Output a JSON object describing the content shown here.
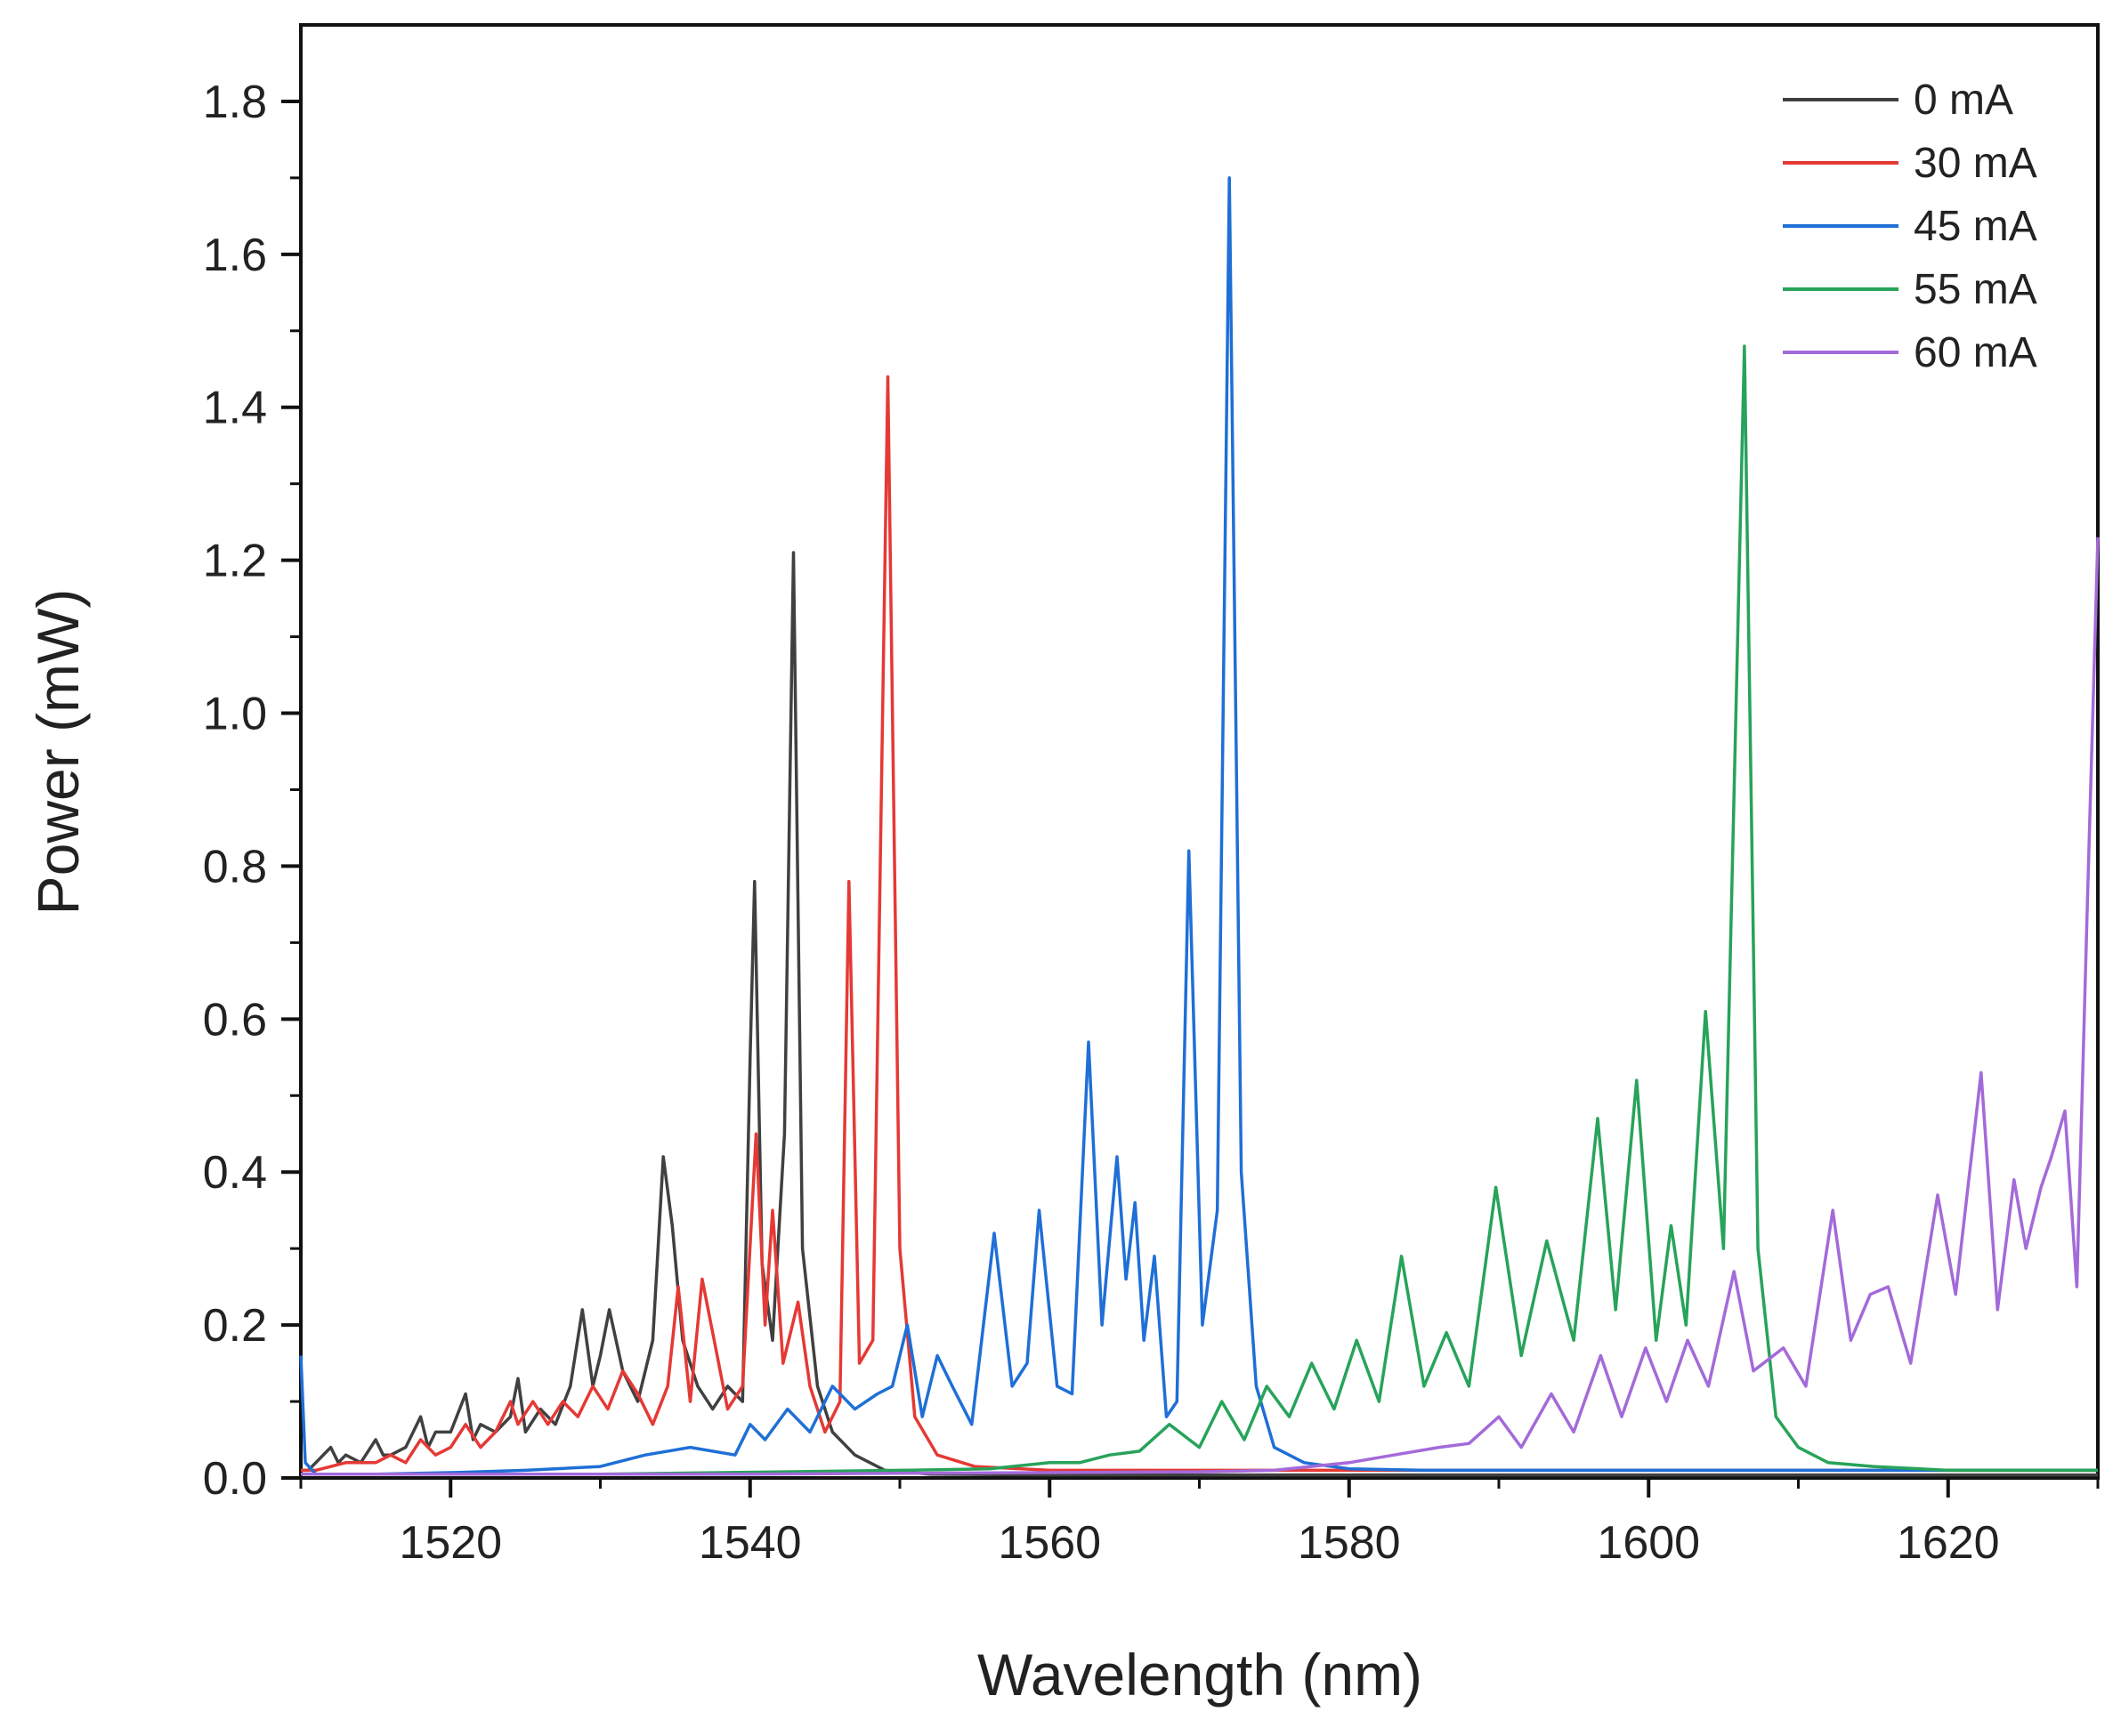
{
  "chart_data": {
    "type": "line",
    "title": "",
    "xlabel": "Wavelength (nm)",
    "ylabel": "Power (mW)",
    "xlim": [
      1510,
      1630
    ],
    "ylim": [
      0,
      1.9
    ],
    "xticks": [
      1520,
      1540,
      1560,
      1580,
      1600,
      1620
    ],
    "yticks": [
      0.0,
      0.2,
      0.4,
      0.6,
      0.8,
      1.0,
      1.2,
      1.4,
      1.6,
      1.8
    ],
    "ytick_labels": [
      "0.0",
      "0.2",
      "0.4",
      "0.6",
      "0.8",
      "1.0",
      "1.2",
      "1.4",
      "1.6",
      "1.8"
    ],
    "grid": false,
    "legend_position": "top-right",
    "series": [
      {
        "name": "0 mA",
        "color": "#404040",
        "x": [
          1510,
          1510.5,
          1511,
          1512,
          1512.5,
          1513,
          1514,
          1515,
          1515.5,
          1516,
          1517,
          1518,
          1518.5,
          1519,
          1520,
          1521,
          1521.5,
          1522,
          1523,
          1524,
          1524.5,
          1525,
          1526,
          1527,
          1528,
          1528.8,
          1529.5,
          1530,
          1530.6,
          1531.5,
          1532.5,
          1533.5,
          1534.2,
          1534.8,
          1535.5,
          1536.5,
          1537.5,
          1538.5,
          1539.5,
          1540,
          1540.3,
          1540.8,
          1541.5,
          1542.3,
          1542.9,
          1543.5,
          1544.5,
          1545.5,
          1547,
          1549,
          1552,
          1560,
          1570,
          1580,
          1590,
          1600,
          1610,
          1620,
          1630
        ],
        "y": [
          0.01,
          0.01,
          0.02,
          0.04,
          0.02,
          0.03,
          0.02,
          0.05,
          0.03,
          0.03,
          0.04,
          0.08,
          0.04,
          0.06,
          0.06,
          0.11,
          0.05,
          0.07,
          0.06,
          0.08,
          0.13,
          0.06,
          0.09,
          0.07,
          0.12,
          0.22,
          0.12,
          0.16,
          0.22,
          0.14,
          0.1,
          0.18,
          0.42,
          0.33,
          0.18,
          0.12,
          0.09,
          0.12,
          0.1,
          0.55,
          0.78,
          0.28,
          0.18,
          0.45,
          1.21,
          0.3,
          0.12,
          0.06,
          0.03,
          0.01,
          0.005,
          0.004,
          0.004,
          0.004,
          0.004,
          0.004,
          0.004,
          0.004,
          0.004
        ]
      },
      {
        "name": "30 mA",
        "color": "#e53935",
        "x": [
          1510,
          1511,
          1513,
          1515,
          1516,
          1517,
          1518,
          1519,
          1520,
          1521,
          1522,
          1523,
          1524,
          1524.5,
          1525.5,
          1526.5,
          1527.5,
          1528.5,
          1529.5,
          1530.5,
          1531.5,
          1532.5,
          1533.5,
          1534.5,
          1535.2,
          1536,
          1536.8,
          1537.6,
          1538.5,
          1539.5,
          1540.4,
          1541,
          1541.5,
          1542.2,
          1543.2,
          1544,
          1545,
          1546,
          1546.6,
          1547.3,
          1548.2,
          1549.2,
          1550,
          1551,
          1552.5,
          1555,
          1560,
          1570,
          1580,
          1590,
          1600,
          1610,
          1620,
          1630
        ],
        "y": [
          0.01,
          0.01,
          0.02,
          0.02,
          0.03,
          0.02,
          0.05,
          0.03,
          0.04,
          0.07,
          0.04,
          0.06,
          0.1,
          0.07,
          0.1,
          0.07,
          0.1,
          0.08,
          0.12,
          0.09,
          0.14,
          0.11,
          0.07,
          0.12,
          0.25,
          0.1,
          0.26,
          0.18,
          0.09,
          0.12,
          0.45,
          0.2,
          0.35,
          0.15,
          0.23,
          0.12,
          0.06,
          0.1,
          0.78,
          0.15,
          0.18,
          1.44,
          0.3,
          0.08,
          0.03,
          0.015,
          0.01,
          0.01,
          0.01,
          0.01,
          0.01,
          0.01,
          0.01,
          0.01
        ]
      },
      {
        "name": "45 mA",
        "color": "#1f6fd6",
        "x": [
          1510,
          1510.3,
          1511,
          1515,
          1520,
          1525,
          1530,
          1533,
          1536,
          1539,
          1540,
          1541,
          1542.5,
          1544,
          1545.5,
          1547,
          1548.5,
          1549.5,
          1550.5,
          1551.5,
          1552.5,
          1553.5,
          1554.8,
          1556.3,
          1557.5,
          1558.5,
          1559.3,
          1560.5,
          1561.5,
          1562.6,
          1563.5,
          1564.5,
          1565.1,
          1565.7,
          1566.3,
          1567,
          1567.8,
          1568.5,
          1569.3,
          1570.2,
          1571.2,
          1572,
          1572.8,
          1573.8,
          1575,
          1577,
          1580,
          1585,
          1590,
          1600,
          1610,
          1620,
          1630
        ],
        "y": [
          0.16,
          0.02,
          0.005,
          0.005,
          0.007,
          0.01,
          0.015,
          0.03,
          0.04,
          0.03,
          0.07,
          0.05,
          0.09,
          0.06,
          0.12,
          0.09,
          0.11,
          0.12,
          0.2,
          0.08,
          0.16,
          0.12,
          0.07,
          0.32,
          0.12,
          0.15,
          0.35,
          0.12,
          0.11,
          0.57,
          0.2,
          0.42,
          0.26,
          0.36,
          0.18,
          0.29,
          0.08,
          0.1,
          0.82,
          0.2,
          0.35,
          1.7,
          0.4,
          0.12,
          0.04,
          0.02,
          0.012,
          0.01,
          0.01,
          0.01,
          0.01,
          0.01,
          0.01
        ]
      },
      {
        "name": "55 mA",
        "color": "#27a35a",
        "x": [
          1510,
          1530,
          1550,
          1556,
          1560,
          1562,
          1564,
          1566,
          1568,
          1570,
          1571.5,
          1573,
          1574.5,
          1576,
          1577.5,
          1579,
          1580.5,
          1582,
          1583.5,
          1585,
          1586.5,
          1588,
          1589.8,
          1591.5,
          1593.2,
          1595,
          1596.6,
          1597.8,
          1599.2,
          1600.5,
          1601.5,
          1602.5,
          1603.8,
          1605,
          1606.4,
          1607.3,
          1608.5,
          1610,
          1612,
          1615,
          1620,
          1630
        ],
        "y": [
          0.005,
          0.005,
          0.01,
          0.012,
          0.02,
          0.02,
          0.03,
          0.035,
          0.07,
          0.04,
          0.1,
          0.05,
          0.12,
          0.08,
          0.15,
          0.09,
          0.18,
          0.1,
          0.29,
          0.12,
          0.19,
          0.12,
          0.38,
          0.16,
          0.31,
          0.18,
          0.47,
          0.22,
          0.52,
          0.18,
          0.33,
          0.2,
          0.61,
          0.3,
          1.48,
          0.3,
          0.08,
          0.04,
          0.02,
          0.015,
          0.01,
          0.01
        ]
      },
      {
        "name": "60 mA",
        "color": "#a36ad9",
        "x": [
          1510,
          1540,
          1570,
          1575,
          1580,
          1583,
          1586,
          1588,
          1590,
          1591.5,
          1593.5,
          1595,
          1596.8,
          1598.2,
          1599.8,
          1601.2,
          1602.6,
          1604,
          1605.7,
          1607,
          1609,
          1610.5,
          1612.3,
          1613.5,
          1614.8,
          1616,
          1617.5,
          1619.3,
          1620.5,
          1622.2,
          1623.3,
          1624.4,
          1625.2,
          1626.2,
          1626.9,
          1627.8,
          1628.6,
          1629.3,
          1630
        ],
        "y": [
          0.005,
          0.005,
          0.008,
          0.01,
          0.02,
          0.03,
          0.04,
          0.045,
          0.08,
          0.04,
          0.11,
          0.06,
          0.16,
          0.08,
          0.17,
          0.1,
          0.18,
          0.12,
          0.27,
          0.14,
          0.17,
          0.12,
          0.35,
          0.18,
          0.24,
          0.25,
          0.15,
          0.37,
          0.24,
          0.53,
          0.22,
          0.39,
          0.3,
          0.38,
          0.42,
          0.48,
          0.25,
          0.75,
          1.23
        ]
      }
    ]
  }
}
